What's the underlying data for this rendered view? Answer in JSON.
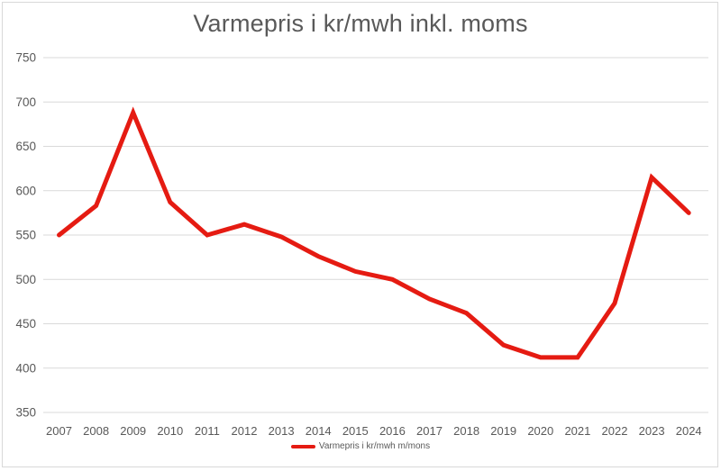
{
  "title": "Varmepris i kr/mwh inkl. moms",
  "legend": {
    "label": "Varmepris i kr/mwh m/mons"
  },
  "colors": {
    "line": "#e51b12",
    "title_text": "#595959",
    "axis_text": "#595959",
    "gridline": "#d9d9d9",
    "border": "#d9d9d9"
  },
  "chart_data": {
    "type": "line",
    "title": "Varmepris i kr/mwh inkl. moms",
    "categories": [
      "2007",
      "2008",
      "2009",
      "2010",
      "2011",
      "2012",
      "2013",
      "2014",
      "2015",
      "2016",
      "2017",
      "2018",
      "2019",
      "2020",
      "2021",
      "2022",
      "2023",
      "2024"
    ],
    "series": [
      {
        "name": "Varmepris i kr/mwh m/mons",
        "values": [
          550,
          583,
          688,
          587,
          550,
          562,
          548,
          526,
          509,
          500,
          478,
          462,
          426,
          412,
          412,
          473,
          615,
          575
        ]
      }
    ],
    "xlabel": "",
    "ylabel": "",
    "ylim": [
      350,
      750
    ],
    "y_ticks": [
      750,
      700,
      650,
      600,
      550,
      500,
      450,
      400,
      350
    ],
    "grid": true,
    "legend_position": "bottom"
  }
}
